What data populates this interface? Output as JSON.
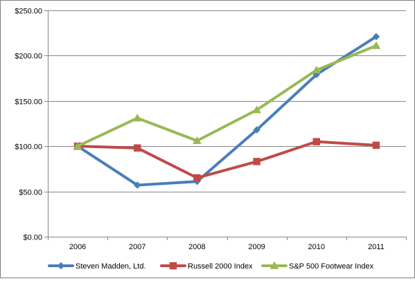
{
  "chart_data": {
    "type": "line",
    "categories": [
      "2006",
      "2007",
      "2008",
      "2009",
      "2010",
      "2011"
    ],
    "ylim": [
      0,
      250
    ],
    "yticks": [
      0,
      50,
      100,
      150,
      200,
      250
    ],
    "ytick_labels": [
      "$0.00",
      "$50.00",
      "$100.00",
      "$150.00",
      "$200.00",
      "$250.00"
    ],
    "grid": true,
    "legend_position": "bottom",
    "series": [
      {
        "name": "Steven Madden, Ltd.",
        "values": [
          100,
          57,
          61,
          118,
          179,
          221
        ],
        "color": "#4a7ebb",
        "marker": "diamond"
      },
      {
        "name": "Russell 2000 Index",
        "values": [
          100,
          98,
          65,
          83,
          105,
          101
        ],
        "color": "#be4b48",
        "marker": "square"
      },
      {
        "name": "S&P 500 Footwear Index",
        "values": [
          100,
          131,
          106,
          140,
          184,
          211
        ],
        "color": "#98b954",
        "marker": "triangle"
      }
    ]
  }
}
